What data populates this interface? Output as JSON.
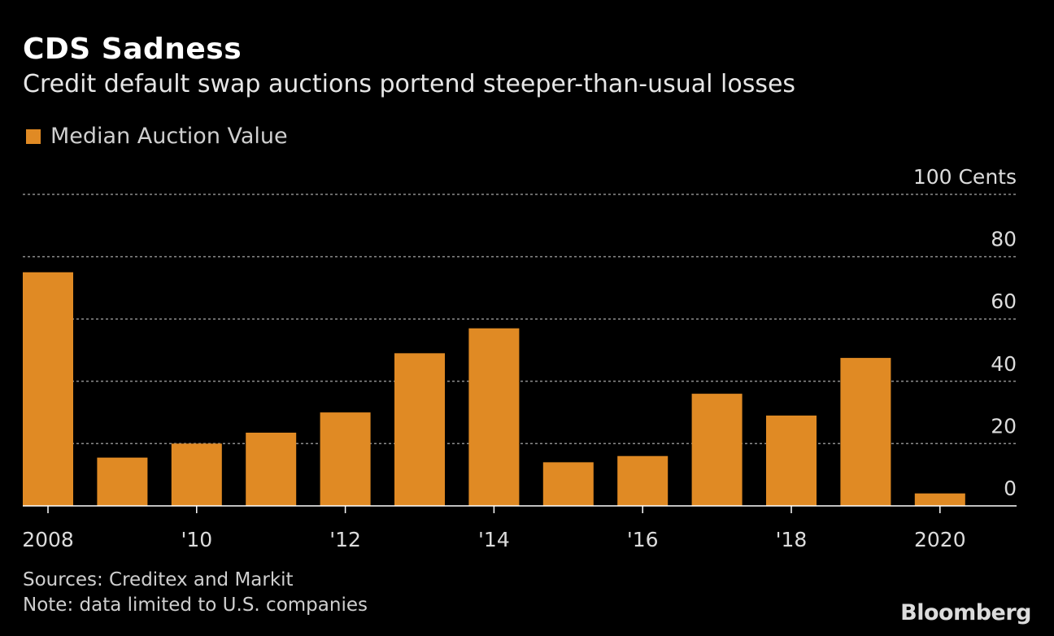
{
  "chart_data": {
    "type": "bar",
    "title": "CDS Sadness",
    "subtitle": "Credit default swap auctions portend steeper-than-usual losses",
    "legend": [
      {
        "name": "Median Auction Value",
        "color": "#e08a24"
      }
    ],
    "legend_position": "top-left",
    "categories": [
      "2008",
      "2009",
      "2010",
      "2011",
      "2012",
      "2013",
      "2014",
      "2015",
      "2016",
      "2017",
      "2018",
      "2019",
      "2020"
    ],
    "x_tick_labels": [
      "2008",
      "'10",
      "'12",
      "'14",
      "'16",
      "'18",
      "2020"
    ],
    "x_tick_categories": [
      "2008",
      "2010",
      "2012",
      "2014",
      "2016",
      "2018",
      "2020"
    ],
    "series": [
      {
        "name": "Median Auction Value",
        "values": [
          75,
          15.5,
          20,
          23.5,
          30,
          49,
          57,
          14,
          16,
          36,
          29,
          47.5,
          4
        ]
      }
    ],
    "y_ticks": [
      0,
      20,
      40,
      60,
      80,
      100
    ],
    "y_top_label": "100 Cents",
    "ylim": [
      0,
      100
    ],
    "grid": true,
    "axis_side": "right",
    "ylabel": "Cents",
    "xlabel": ""
  },
  "colors": {
    "bar": "#e08a24",
    "background": "#000000",
    "grid": "#8c8c8c"
  },
  "footer": {
    "sources": "Sources: Creditex and Markit",
    "note": "Note: data limited to U.S. companies",
    "brand": "Bloomberg"
  }
}
